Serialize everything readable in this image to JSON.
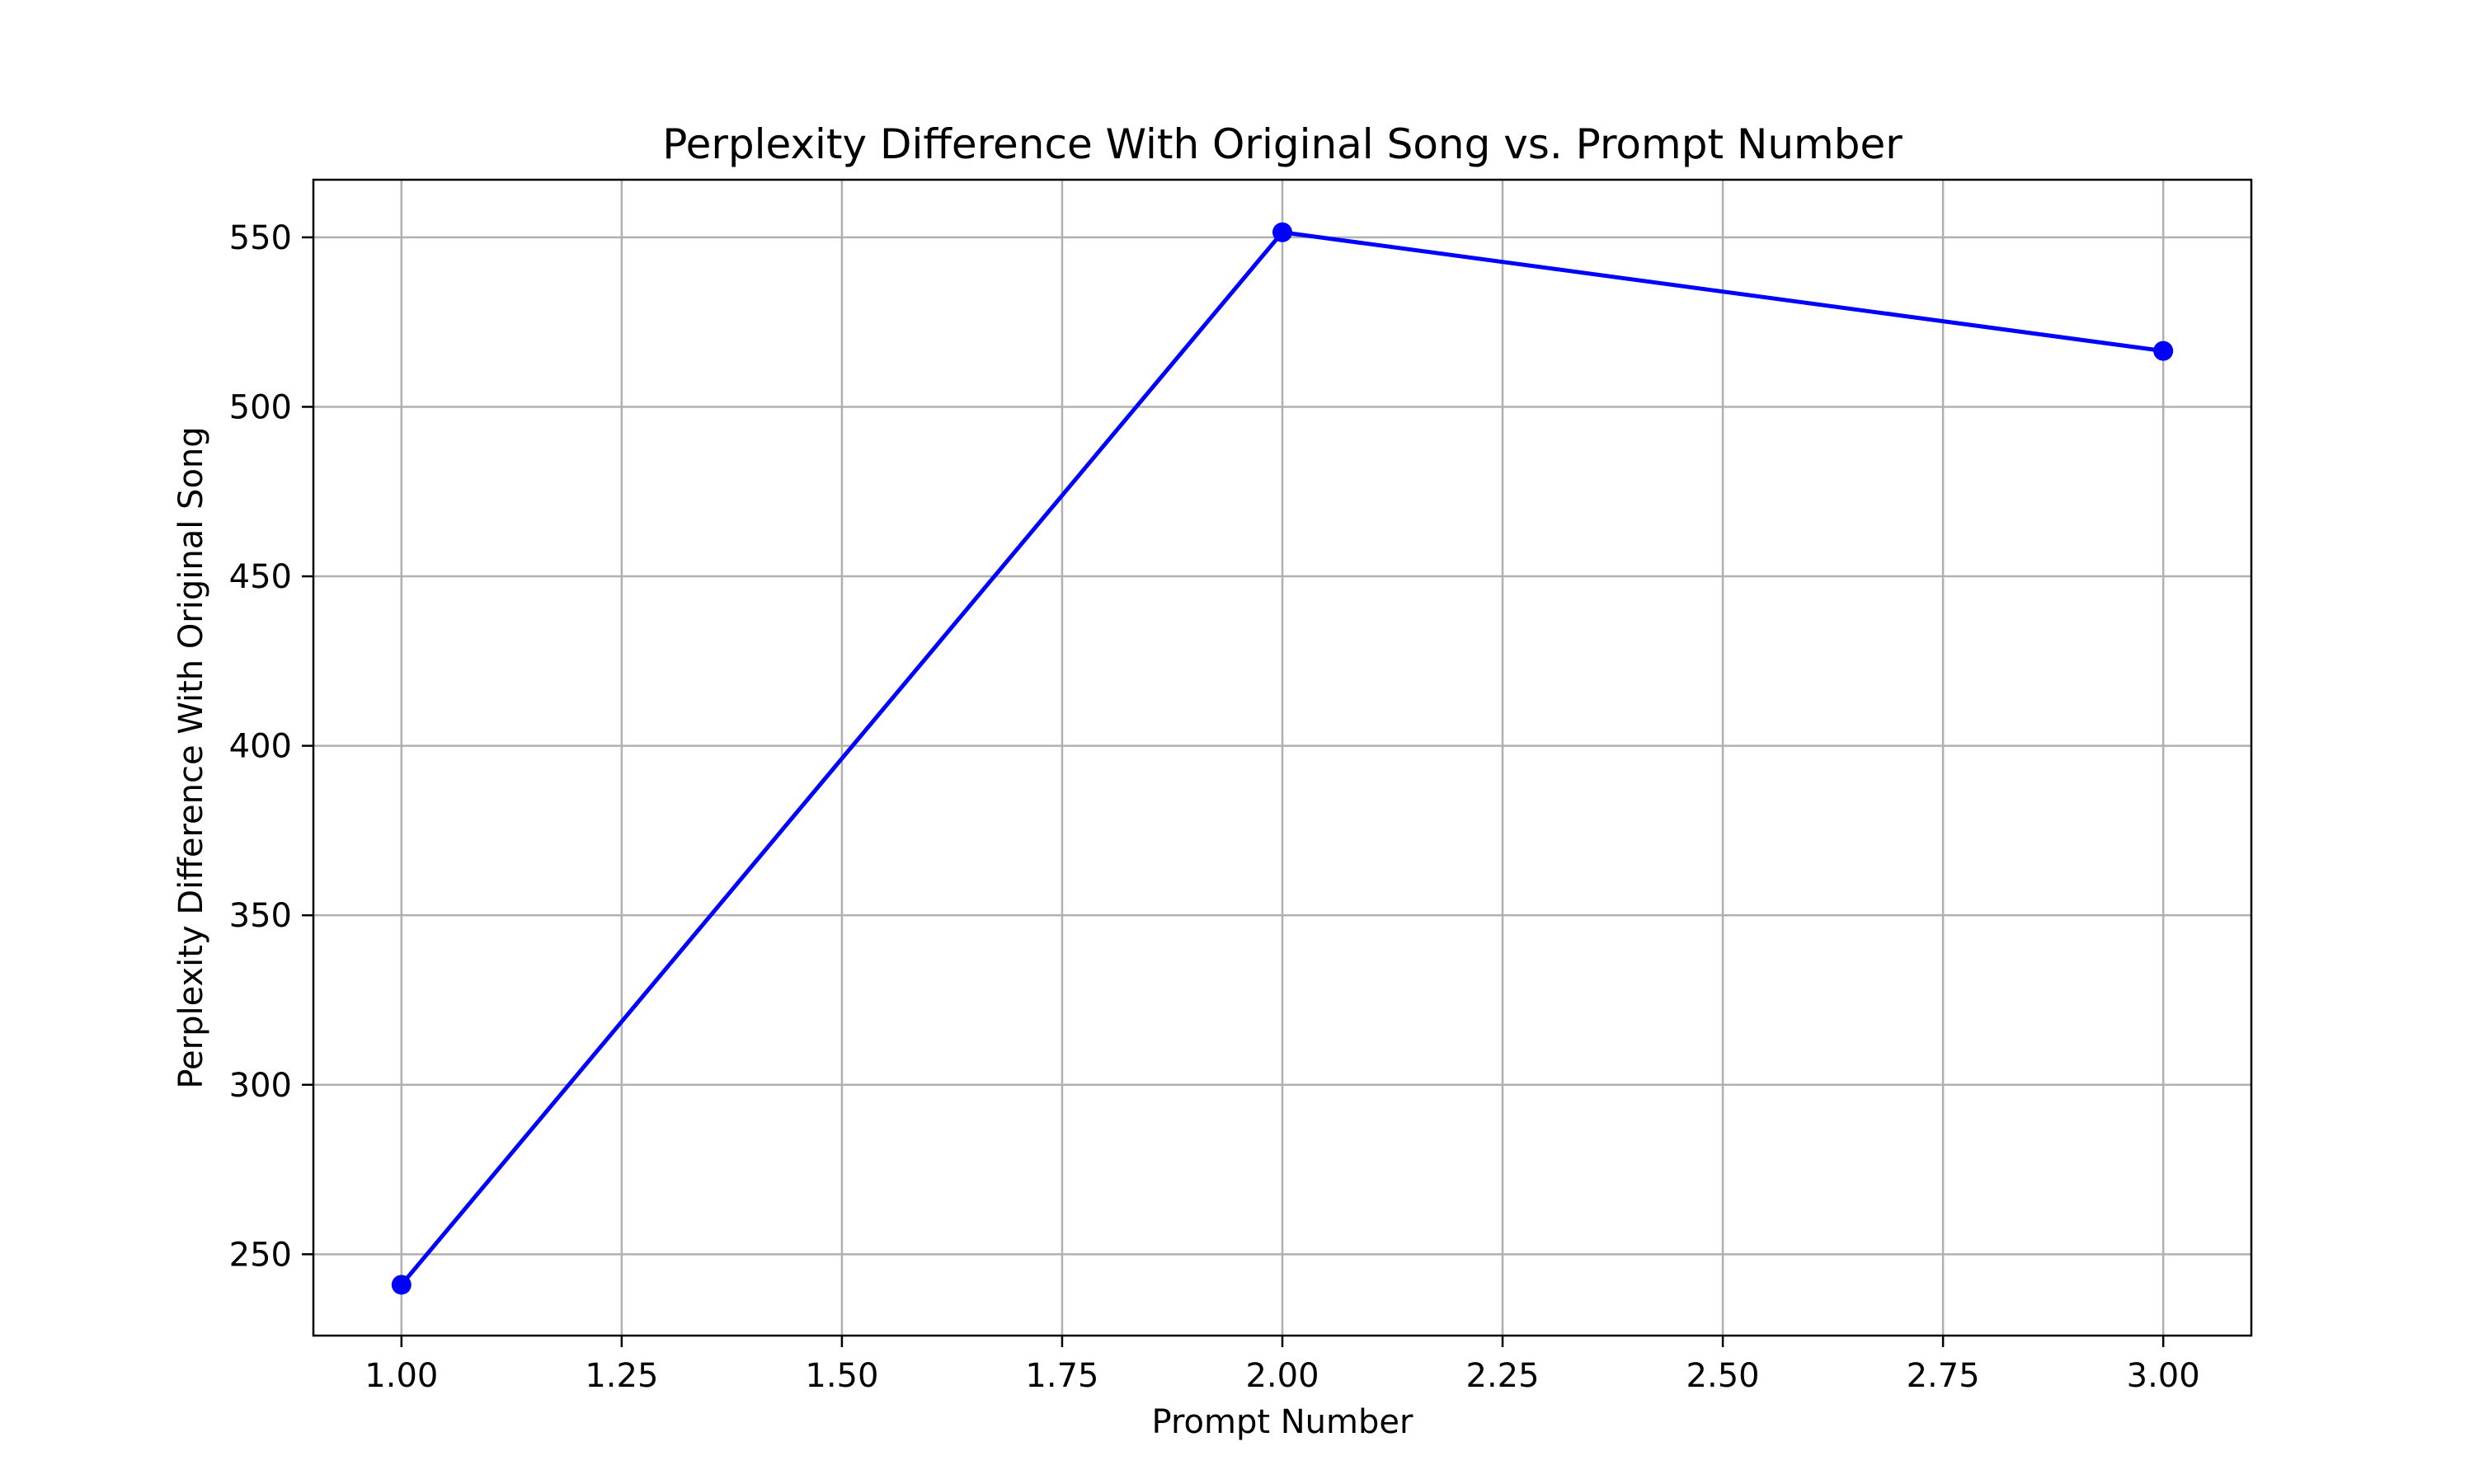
{
  "chart_data": {
    "type": "line",
    "title": "Perplexity Difference With Original Song vs. Prompt Number",
    "xlabel": "Prompt Number",
    "ylabel": "Perplexity Difference With Original Song",
    "x": [
      1.0,
      2.0,
      3.0
    ],
    "series": [
      {
        "values": [
          241,
          551.5,
          516.5
        ],
        "color": "#0000ff",
        "marker": "circle"
      }
    ],
    "xlim": [
      0.9,
      3.1
    ],
    "ylim": [
      226,
      567
    ],
    "x_ticks": [
      1.0,
      1.25,
      1.5,
      1.75,
      2.0,
      2.25,
      2.5,
      2.75,
      3.0
    ],
    "x_tick_labels": [
      "1.00",
      "1.25",
      "1.50",
      "1.75",
      "2.00",
      "2.25",
      "2.50",
      "2.75",
      "3.00"
    ],
    "y_ticks": [
      250,
      300,
      350,
      400,
      450,
      500,
      550
    ],
    "y_tick_labels": [
      "250",
      "300",
      "350",
      "400",
      "450",
      "500",
      "550"
    ],
    "grid": true,
    "grid_color": "#b0b0b0"
  }
}
